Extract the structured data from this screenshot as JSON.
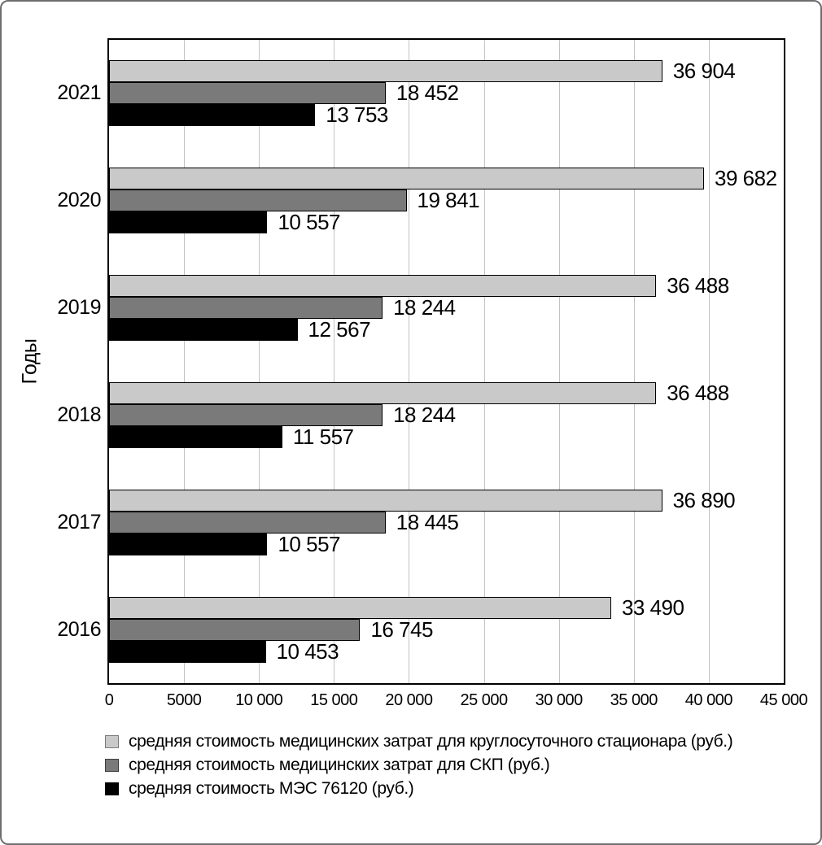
{
  "chart_data": {
    "type": "bar",
    "orientation": "horizontal",
    "title": "",
    "xlabel": "",
    "ylabel": "Годы",
    "xlim": [
      0,
      45000
    ],
    "grid": "vertical",
    "legend_position": "bottom-left",
    "x_tick_values": [
      0,
      5000,
      10000,
      15000,
      20000,
      25000,
      30000,
      35000,
      40000,
      45000
    ],
    "x_tick_labels": [
      "0",
      "5000",
      "10 000",
      "15 000",
      "20 000",
      "25 000",
      "30 000",
      "35 000",
      "40 000",
      "45 000"
    ],
    "categories": [
      "2021",
      "2020",
      "2019",
      "2018",
      "2017",
      "2016"
    ],
    "series": [
      {
        "name": "средняя стоимость медицинских затрат для круглосуточного стационара (руб.)",
        "color": "#c9c9c9",
        "swatch_border": "#7a7a7a",
        "values": [
          36904,
          39682,
          36488,
          36488,
          36890,
          33490
        ],
        "labels": [
          "36 904",
          "39 682",
          "36 488",
          "36 488",
          "36 890",
          "33 490"
        ]
      },
      {
        "name": "средняя стоимость медицинских затрат для СКП (руб.)",
        "color": "#7a7a7a",
        "swatch_border": "#3c3c3c",
        "values": [
          18452,
          19841,
          18244,
          18244,
          18445,
          16745
        ],
        "labels": [
          "18 452",
          "19 841",
          "18 244",
          "18 244",
          "18 445",
          "16 745"
        ]
      },
      {
        "name": "средняя стоимость МЭС 76120 (руб.)",
        "color": "#000000",
        "swatch_border": "#000000",
        "values": [
          13753,
          10557,
          12567,
          11557,
          10557,
          10453
        ],
        "labels": [
          "13 753",
          "10 557",
          "12 567",
          "11 557",
          "10 557",
          "10 453"
        ]
      }
    ],
    "style": {
      "gridline_color": "#c3c3c3",
      "plot_border_color": "#000000",
      "frame_border_color": "#6e6e6e",
      "background": "#ffffff"
    }
  }
}
